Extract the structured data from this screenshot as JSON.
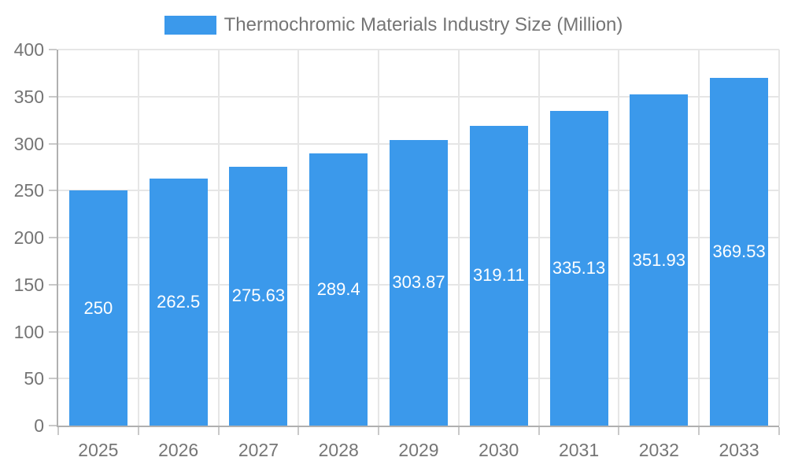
{
  "chart_data": {
    "type": "bar",
    "title": "Thermochromic Materials Industry Size (Million)",
    "categories": [
      "2025",
      "2026",
      "2027",
      "2028",
      "2029",
      "2030",
      "2031",
      "2032",
      "2033"
    ],
    "values": [
      250,
      262.5,
      275.63,
      289.4,
      303.87,
      319.11,
      335.13,
      351.93,
      369.53
    ],
    "value_labels": [
      "250",
      "262.5",
      "275.63",
      "289.4",
      "303.87",
      "319.11",
      "335.13",
      "351.93",
      "369.53"
    ],
    "xlabel": "",
    "ylabel": "",
    "ylim": [
      0,
      400
    ],
    "y_tick_step": 50,
    "y_tick_labels": [
      "0",
      "50",
      "100",
      "150",
      "200",
      "250",
      "300",
      "350",
      "400"
    ],
    "grid": true,
    "legend_position": "top-center",
    "value_label_position": "center-of-bar",
    "colors": {
      "bar": "#3B99EB",
      "value_label_text": "#FFFFFF",
      "axis_text": "#757575",
      "legend_text": "#757575",
      "axis_line": "#B0B0B0",
      "tick": "#C9C9C9",
      "gridline": "#E6E6E6",
      "background": "#FFFFFF"
    }
  }
}
